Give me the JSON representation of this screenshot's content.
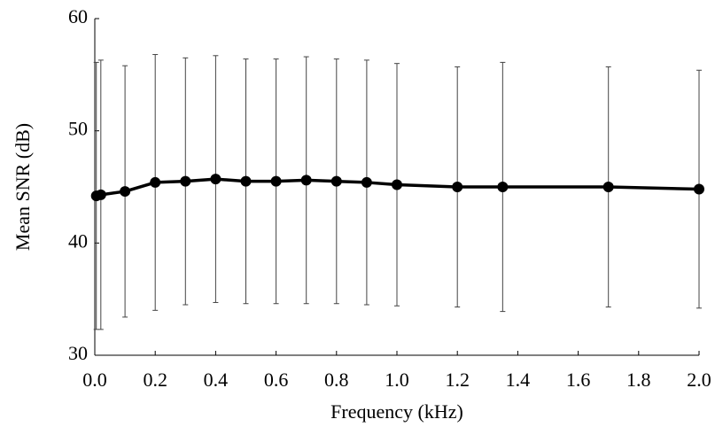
{
  "chart_data": {
    "type": "line",
    "x_label": "Frequency (kHz)",
    "y_label": "Mean SNR (dB)",
    "series": [
      {
        "color": "#000000",
        "x": [
          0.005,
          0.02,
          0.1,
          0.2,
          0.3,
          0.4,
          0.5,
          0.6,
          0.7,
          0.8,
          0.9,
          1.0,
          1.2,
          1.35,
          1.7,
          2.0
        ],
        "values": [
          44.2,
          44.3,
          44.6,
          45.4,
          45.5,
          45.7,
          45.5,
          45.5,
          45.6,
          45.5,
          45.4,
          45.2,
          45.0,
          45.0,
          45.0,
          44.8
        ],
        "errors": [
          11.9,
          12.0,
          11.2,
          11.4,
          11.0,
          11.0,
          10.9,
          10.9,
          11.0,
          10.9,
          10.9,
          10.8,
          10.7,
          11.1,
          10.7,
          10.6
        ]
      }
    ],
    "xlim": [
      0,
      2
    ],
    "xticks": [
      {
        "value": 0,
        "label": "0.0"
      },
      {
        "value": 0.2,
        "label": "0.2"
      },
      {
        "value": 0.4,
        "label": "0.4"
      },
      {
        "value": 0.6,
        "label": "0.6"
      },
      {
        "value": 0.8,
        "label": "0.8"
      },
      {
        "value": 1,
        "label": "1.0"
      },
      {
        "value": 1.2,
        "label": "1.2"
      },
      {
        "value": 1.4,
        "label": "1.4"
      },
      {
        "value": 1.6,
        "label": "1.6"
      },
      {
        "value": 1.8,
        "label": "1.8"
      },
      {
        "value": 2,
        "label": "2.0"
      }
    ],
    "ylim": [
      30,
      60
    ],
    "yticks": [
      30,
      40,
      50,
      60
    ]
  }
}
